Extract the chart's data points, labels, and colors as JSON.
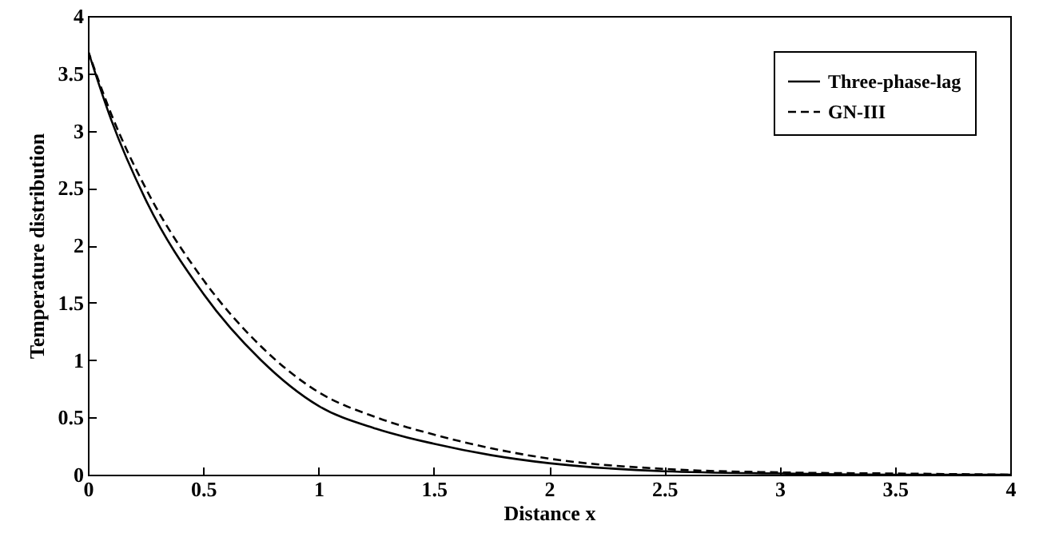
{
  "chart_data": {
    "type": "line",
    "xlabel": "Distance x",
    "ylabel": "Temperature distribution",
    "x": [
      0,
      0.1,
      0.25,
      0.5,
      0.75,
      1,
      1.25,
      1.5,
      1.75,
      2,
      2.5,
      3,
      3.5,
      4
    ],
    "series": [
      {
        "name": "Three-phase-lag",
        "color": "#000000",
        "line_style": "solid",
        "values": [
          3.7,
          3.1,
          2.4,
          1.58,
          1.0,
          0.6,
          0.4,
          0.27,
          0.17,
          0.1,
          0.03,
          0.01,
          0,
          0
        ]
      },
      {
        "name": "GN-III",
        "color": "#000000",
        "line_style": "dashed",
        "values": [
          3.7,
          3.15,
          2.5,
          1.7,
          1.12,
          0.72,
          0.5,
          0.35,
          0.23,
          0.14,
          0.05,
          0.02,
          0.01,
          0
        ]
      }
    ],
    "xlim": [
      0,
      4
    ],
    "xticks": [
      0,
      0.5,
      1,
      1.5,
      2,
      2.5,
      3,
      3.5,
      4
    ],
    "ylim": [
      0,
      4
    ],
    "yticks": [
      0,
      0.5,
      1,
      1.5,
      2,
      2.5,
      3,
      3.5,
      4
    ],
    "grid": false,
    "legend": "top right",
    "marker": "none"
  }
}
